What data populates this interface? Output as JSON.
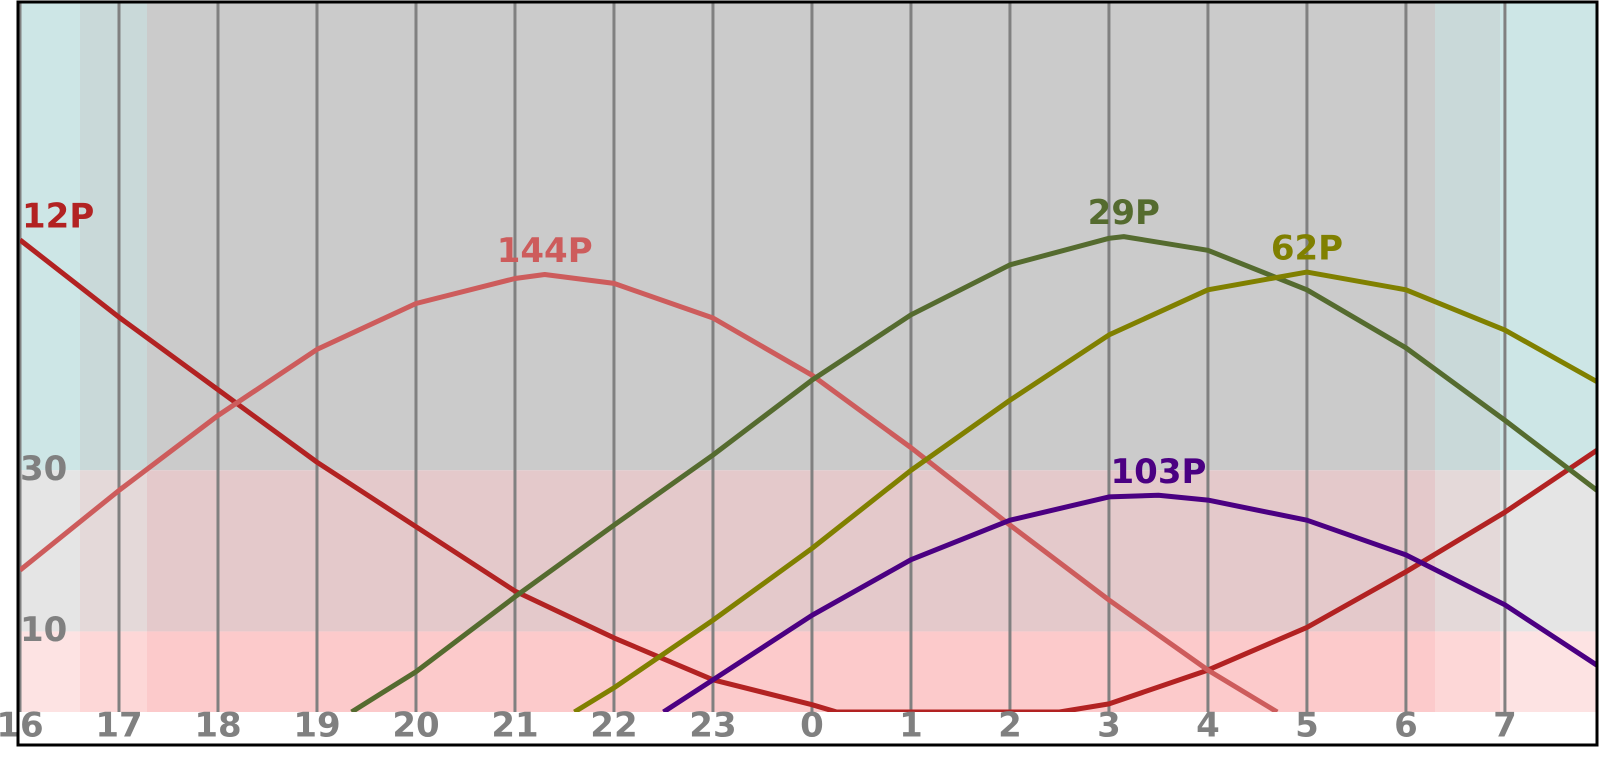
{
  "chart_data": {
    "type": "line",
    "xlim": [
      16,
      31.93
    ],
    "xticks": [
      16,
      17,
      18,
      19,
      20,
      21,
      22,
      23,
      {
        "value": 24,
        "label": "0"
      },
      {
        "value": 25,
        "label": "1"
      },
      {
        "value": 26,
        "label": "2"
      },
      {
        "value": 27,
        "label": "3"
      },
      {
        "value": 28,
        "label": "4"
      },
      {
        "value": 29,
        "label": "5"
      },
      {
        "value": 30,
        "label": "6"
      },
      {
        "value": 31,
        "label": "7"
      }
    ],
    "ylim": [
      0,
      88
    ],
    "yticks": [
      10,
      30
    ],
    "grid": true,
    "series": [
      {
        "name": "12P",
        "color": "#b22222",
        "x": [
          16,
          17,
          18,
          19,
          20,
          21,
          22,
          23,
          24,
          24.25,
          26.5,
          27,
          28,
          29,
          30,
          31,
          31.93
        ],
        "values": [
          58.6,
          49,
          40,
          31,
          23,
          15,
          9.2,
          4,
          0.9,
          0,
          0,
          1,
          5.2,
          10.5,
          17.4,
          24.8,
          32.5
        ]
      },
      {
        "name": "144P",
        "color": "#cd5c5c",
        "x": [
          16,
          17,
          18,
          19,
          20,
          21,
          21.3,
          22,
          23,
          24,
          25,
          26,
          27,
          28,
          28.7
        ],
        "values": [
          17.6,
          27.5,
          36.8,
          45,
          50.7,
          53.8,
          54.3,
          53.2,
          48.9,
          41.8,
          32.8,
          23.2,
          13.9,
          5.2,
          0
        ]
      },
      {
        "name": "29P",
        "color": "#556b2f",
        "x": [
          19.35,
          20,
          21,
          22,
          23,
          24,
          25,
          26,
          27,
          27.15,
          28,
          29,
          30,
          31,
          31.93
        ],
        "values": [
          0,
          5,
          14.3,
          23.2,
          31.9,
          41.2,
          49.3,
          55.5,
          58.8,
          59,
          57.3,
          52.4,
          45.2,
          36.2,
          27.5
        ]
      },
      {
        "name": "62P",
        "color": "#808000",
        "x": [
          21.6,
          22,
          23,
          24,
          25,
          26,
          27,
          28,
          29,
          30,
          31,
          31.93
        ],
        "values": [
          0,
          3,
          11.4,
          20.3,
          30,
          38.7,
          46.8,
          52.4,
          54.6,
          52.4,
          47.4,
          41
        ]
      },
      {
        "name": "103P",
        "color": "#4b0082",
        "x": [
          22.5,
          23,
          24,
          25,
          26,
          27,
          27.5,
          28,
          29,
          30,
          31,
          31.93
        ],
        "values": [
          0,
          4,
          12,
          18.9,
          23.8,
          26.7,
          26.9,
          26.3,
          23.8,
          19.5,
          13.3,
          5.8
        ]
      }
    ]
  }
}
